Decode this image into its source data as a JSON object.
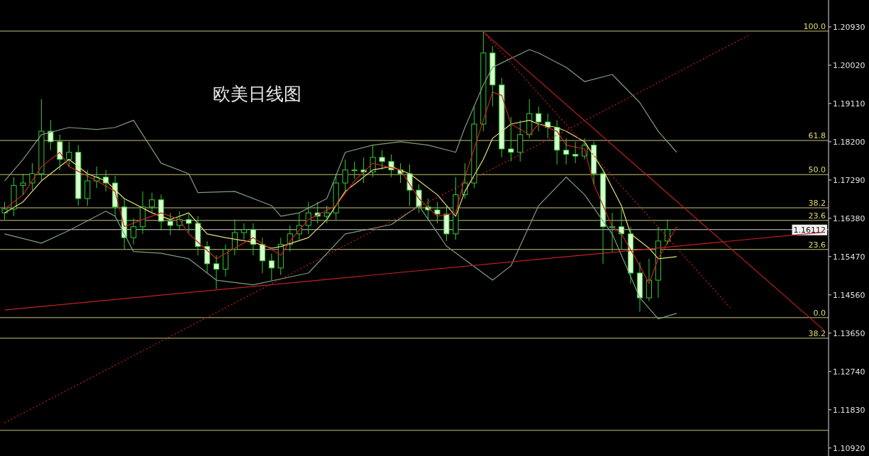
{
  "chart_data": {
    "type": "candlestick",
    "title": "欧美日线图",
    "color": "#33cc33",
    "categories": [
      null,
      null,
      null,
      null,
      null,
      null,
      null,
      null,
      null,
      null,
      null,
      null,
      null,
      null,
      null,
      null,
      null,
      null,
      null,
      null,
      null,
      null,
      null,
      null,
      null,
      null,
      null,
      null,
      null,
      null,
      null,
      null,
      null,
      null,
      null,
      null,
      null,
      null,
      null,
      null,
      null,
      null,
      null,
      null,
      null,
      null,
      null,
      null,
      null,
      null,
      null,
      null,
      null,
      null,
      null,
      null,
      null,
      null,
      null,
      null,
      null,
      null,
      null,
      null,
      null,
      null,
      null,
      null,
      null,
      null,
      null,
      null,
      null,
      null,
      null,
      null,
      null,
      null,
      null,
      null,
      null,
      null,
      null,
      null,
      null,
      null,
      null,
      null,
      null,
      null
    ],
    "ohlc": [
      [
        1.1651,
        1.1677,
        1.1635,
        1.166
      ],
      [
        1.166,
        1.1736,
        1.1643,
        1.1716
      ],
      [
        1.1716,
        1.1744,
        1.1694,
        1.1722
      ],
      [
        1.1722,
        1.1769,
        1.1705,
        1.1744
      ],
      [
        1.1744,
        1.1921,
        1.1727,
        1.1845
      ],
      [
        1.1845,
        1.1871,
        1.18,
        1.182
      ],
      [
        1.182,
        1.1837,
        1.1753,
        1.1778
      ],
      [
        1.1778,
        1.182,
        1.1761,
        1.1795
      ],
      [
        1.1795,
        1.1812,
        1.1668,
        1.1685
      ],
      [
        1.1685,
        1.1753,
        1.1668,
        1.1727
      ],
      [
        1.1727,
        1.1761,
        1.171,
        1.1736
      ],
      [
        1.1736,
        1.1753,
        1.1702,
        1.1722
      ],
      [
        1.1722,
        1.1739,
        1.1643,
        1.1665
      ],
      [
        1.1665,
        1.1685,
        1.1564,
        1.1592
      ],
      [
        1.1592,
        1.1638,
        1.1576,
        1.1618
      ],
      [
        1.1618,
        1.1702,
        1.1601,
        1.1665
      ],
      [
        1.1665,
        1.1699,
        1.1651,
        1.1682
      ],
      [
        1.1682,
        1.1694,
        1.1609,
        1.1631
      ],
      [
        1.1631,
        1.1651,
        1.1598,
        1.1621
      ],
      [
        1.1621,
        1.1655,
        1.1609,
        1.1635
      ],
      [
        1.1635,
        1.1651,
        1.1604,
        1.1626
      ],
      [
        1.1626,
        1.1643,
        1.155,
        1.1571
      ],
      [
        1.1571,
        1.1584,
        1.1508,
        1.153
      ],
      [
        1.153,
        1.155,
        1.147,
        1.1517
      ],
      [
        1.1517,
        1.1576,
        1.15,
        1.1564
      ],
      [
        1.1564,
        1.1635,
        1.155,
        1.1604
      ],
      [
        1.1604,
        1.1626,
        1.1587,
        1.1611
      ],
      [
        1.1611,
        1.1626,
        1.155,
        1.1576
      ],
      [
        1.1576,
        1.1592,
        1.1508,
        1.1537
      ],
      [
        1.1537,
        1.1554,
        1.1491,
        1.152
      ],
      [
        1.152,
        1.1592,
        1.1503,
        1.1576
      ],
      [
        1.1576,
        1.1621,
        1.1559,
        1.1601
      ],
      [
        1.1601,
        1.1651,
        1.1587,
        1.1621
      ],
      [
        1.1621,
        1.1677,
        1.1601,
        1.1651
      ],
      [
        1.1651,
        1.1677,
        1.1626,
        1.1643
      ],
      [
        1.1643,
        1.1668,
        1.1626,
        1.1651
      ],
      [
        1.1651,
        1.1744,
        1.1635,
        1.1722
      ],
      [
        1.1722,
        1.1778,
        1.1702,
        1.1753
      ],
      [
        1.1753,
        1.1773,
        1.1732,
        1.1753
      ],
      [
        1.1753,
        1.1783,
        1.1722,
        1.1748
      ],
      [
        1.1748,
        1.1812,
        1.1736,
        1.1783
      ],
      [
        1.1783,
        1.18,
        1.1753,
        1.1773
      ],
      [
        1.1773,
        1.179,
        1.1736,
        1.1753
      ],
      [
        1.1753,
        1.1769,
        1.1722,
        1.1744
      ],
      [
        1.1744,
        1.1766,
        1.1668,
        1.1705
      ],
      [
        1.1705,
        1.1719,
        1.1651,
        1.1665
      ],
      [
        1.1665,
        1.1685,
        1.1635,
        1.1658
      ],
      [
        1.1658,
        1.1677,
        1.1626,
        1.1648
      ],
      [
        1.1648,
        1.1668,
        1.1584,
        1.1601
      ],
      [
        1.1601,
        1.1736,
        1.1587,
        1.1694
      ],
      [
        1.1694,
        1.1769,
        1.1685,
        1.1722
      ],
      [
        1.1722,
        1.1904,
        1.171,
        1.1862
      ],
      [
        1.1862,
        1.2081,
        1.1845,
        1.2031
      ],
      [
        1.2031,
        1.2047,
        1.1904,
        1.1955
      ],
      [
        1.1955,
        1.1972,
        1.1783,
        1.1803
      ],
      [
        1.1803,
        1.1879,
        1.1773,
        1.1795
      ],
      [
        1.1795,
        1.1871,
        1.1773,
        1.1837
      ],
      [
        1.1837,
        1.1921,
        1.1828,
        1.1887
      ],
      [
        1.1887,
        1.1904,
        1.1845,
        1.1867
      ],
      [
        1.1867,
        1.1887,
        1.1828,
        1.1854
      ],
      [
        1.1854,
        1.1871,
        1.1766,
        1.18
      ],
      [
        1.18,
        1.1828,
        1.1766,
        1.179
      ],
      [
        1.179,
        1.182,
        1.1769,
        1.1786
      ],
      [
        1.1786,
        1.1828,
        1.1778,
        1.1812
      ],
      [
        1.1812,
        1.182,
        1.1719,
        1.1744
      ],
      [
        1.1744,
        1.1753,
        1.153,
        1.1618
      ],
      [
        1.1618,
        1.1651,
        1.1559,
        1.1618
      ],
      [
        1.1618,
        1.166,
        1.1564,
        1.1601
      ],
      [
        1.1601,
        1.1618,
        1.1483,
        1.1508
      ],
      [
        1.1508,
        1.1534,
        1.1416,
        1.1449
      ],
      [
        1.1449,
        1.1542,
        1.1441,
        1.1491
      ],
      [
        1.1491,
        1.1618,
        1.1449,
        1.1584
      ],
      [
        1.1584,
        1.1635,
        1.1576,
        1.1611
      ],
      null,
      null,
      null,
      null,
      null,
      null,
      null,
      null,
      null,
      null,
      null,
      null,
      null,
      null,
      null,
      null,
      null
    ],
    "series": [
      {
        "type": "line",
        "color": "#7d9c86",
        "values": [
          1.1727,
          null,
          1.1778,
          null,
          1.1837,
          null,
          null,
          1.1854,
          null,
          null,
          1.1849,
          null,
          1.1854,
          null,
          1.1871,
          1.1837,
          null,
          1.1769,
          null,
          null,
          1.1744,
          1.1699,
          null,
          null,
          null,
          1.1702,
          null,
          null,
          null,
          1.1668,
          1.1643,
          null,
          1.1651,
          null,
          null,
          1.1685,
          null,
          1.1795,
          null,
          null,
          1.1812,
          null,
          null,
          1.182,
          null,
          null,
          1.1812,
          null,
          null,
          1.1795,
          1.1854,
          null,
          1.1955,
          1.1997,
          null,
          null,
          null,
          1.2039,
          1.2031,
          null,
          null,
          1.1997,
          null,
          1.1963,
          null,
          null,
          1.198,
          null,
          null,
          1.1913,
          null,
          1.1845,
          null,
          1.1795,
          null,
          null,
          null,
          null,
          null,
          null,
          null,
          null,
          null,
          null,
          null,
          null,
          null,
          null,
          null,
          null
        ]
      },
      {
        "type": "line",
        "color": "#7d9c86",
        "values": [
          1.1601,
          null,
          null,
          null,
          1.1579,
          null,
          null,
          1.1609,
          null,
          null,
          null,
          1.1655,
          1.1643,
          null,
          1.1559,
          null,
          null,
          1.1555,
          null,
          null,
          1.1542,
          null,
          null,
          1.1491,
          null,
          null,
          null,
          1.148,
          null,
          null,
          null,
          null,
          null,
          1.1508,
          null,
          null,
          null,
          1.1601,
          null,
          null,
          null,
          null,
          1.1623,
          null,
          null,
          1.1668,
          null,
          null,
          1.1572,
          null,
          null,
          null,
          null,
          1.1491,
          null,
          1.1525,
          null,
          null,
          1.1668,
          null,
          null,
          1.1736,
          null,
          1.1694,
          null,
          null,
          1.1601,
          null,
          null,
          1.1449,
          null,
          1.1399,
          null,
          1.1412,
          null,
          null,
          null,
          null,
          null,
          null,
          null,
          null,
          null,
          null,
          null,
          null,
          null,
          null,
          null,
          null
        ]
      },
      {
        "type": "line",
        "color": "#e6df7a",
        "values": [
          1.1651,
          null,
          1.1677,
          null,
          1.1727,
          null,
          null,
          1.1778,
          null,
          1.1744,
          null,
          1.1727,
          null,
          1.1685,
          null,
          null,
          1.1651,
          null,
          1.1635,
          null,
          1.1651,
          null,
          1.1601,
          null,
          1.1592,
          null,
          null,
          1.1581,
          null,
          1.1567,
          1.1571,
          null,
          null,
          1.1592,
          null,
          1.1635,
          null,
          1.1702,
          null,
          null,
          1.1753,
          null,
          1.1761,
          null,
          1.1744,
          null,
          null,
          1.1694,
          null,
          1.1643,
          1.1702,
          null,
          1.1778,
          1.1828,
          null,
          1.1862,
          null,
          1.1871,
          1.1862,
          null,
          1.1854,
          1.1845,
          null,
          1.182,
          null,
          1.1753,
          null,
          1.1668,
          1.1601,
          null,
          1.1567,
          1.1542,
          null,
          1.1547,
          null,
          null,
          null,
          null,
          null,
          null,
          null,
          null,
          null,
          null,
          null,
          null,
          null,
          null,
          null,
          null
        ]
      },
      {
        "type": "line",
        "color": "#c42020",
        "values": [
          1.166,
          null,
          1.1694,
          null,
          1.1761,
          null,
          1.1795,
          1.1761,
          null,
          null,
          1.1727,
          null,
          1.1702,
          1.1618,
          null,
          1.1635,
          null,
          1.1651,
          null,
          1.1635,
          1.1601,
          null,
          null,
          1.1542,
          null,
          1.1567,
          null,
          1.1592,
          null,
          null,
          1.155,
          1.1584,
          null,
          1.1635,
          null,
          null,
          1.1668,
          null,
          1.1727,
          null,
          1.1769,
          null,
          null,
          1.1753,
          null,
          1.1685,
          null,
          1.1643,
          null,
          1.1651,
          1.1736,
          null,
          1.1871,
          1.1938,
          1.193,
          1.1862,
          null,
          1.1837,
          1.1862,
          null,
          1.1845,
          1.1812,
          null,
          1.1803,
          1.1719,
          null,
          1.1618,
          1.1601,
          null,
          1.1525,
          1.1483,
          1.1542,
          null,
          1.1618,
          null,
          null,
          null,
          null,
          null,
          null,
          null,
          null,
          null,
          null,
          null,
          null,
          null,
          null,
          null,
          null
        ]
      },
      {
        "type": "line",
        "color": "#c42020",
        "values": [
          1.142,
          null,
          null,
          null,
          null,
          null,
          null,
          null,
          null,
          null,
          null,
          null,
          null,
          null,
          null,
          null,
          null,
          null,
          null,
          null,
          null,
          null,
          null,
          null,
          null,
          null,
          null,
          null,
          null,
          null,
          null,
          null,
          null,
          null,
          null,
          null,
          null,
          null,
          null,
          null,
          null,
          null,
          null,
          null,
          null,
          null,
          null,
          null,
          null,
          null,
          null,
          null,
          null,
          null,
          null,
          null,
          null,
          null,
          null,
          null,
          null,
          null,
          null,
          null,
          null,
          null,
          null,
          null,
          null,
          null,
          null,
          null,
          null,
          null,
          null,
          null,
          null,
          null,
          null,
          null,
          null,
          null,
          null,
          null,
          null,
          null,
          null,
          null,
          null,
          1.1605
        ]
      },
      {
        "type": "line",
        "color": "#c42020",
        "line_style": "dotted",
        "values": [
          1.1152,
          null,
          null,
          null,
          null,
          null,
          null,
          null,
          null,
          null,
          null,
          null,
          null,
          null,
          null,
          null,
          null,
          null,
          null,
          null,
          null,
          null,
          null,
          null,
          null,
          null,
          null,
          null,
          null,
          null,
          null,
          null,
          null,
          null,
          null,
          null,
          null,
          null,
          null,
          null,
          null,
          null,
          null,
          null,
          null,
          null,
          null,
          null,
          null,
          null,
          null,
          null,
          null,
          null,
          null,
          null,
          null,
          null,
          null,
          null,
          null,
          null,
          null,
          null,
          null,
          null,
          null,
          null,
          null,
          null,
          null,
          null,
          null,
          null,
          null,
          null,
          null,
          null,
          null,
          null,
          null,
          1.2075,
          null,
          null,
          null,
          null,
          null,
          null,
          null,
          null
        ]
      },
      {
        "type": "line",
        "color": "#c42020",
        "values": [
          null,
          null,
          null,
          null,
          null,
          null,
          null,
          null,
          null,
          null,
          null,
          null,
          null,
          null,
          null,
          null,
          null,
          null,
          null,
          null,
          null,
          null,
          null,
          null,
          null,
          null,
          null,
          null,
          null,
          null,
          null,
          null,
          null,
          null,
          null,
          null,
          null,
          null,
          null,
          null,
          null,
          null,
          null,
          null,
          null,
          null,
          null,
          null,
          null,
          null,
          null,
          null,
          1.2081,
          null,
          null,
          null,
          null,
          null,
          null,
          null,
          null,
          null,
          null,
          null,
          null,
          null,
          null,
          null,
          null,
          null,
          null,
          null,
          null,
          null,
          null,
          null,
          null,
          null,
          null,
          null,
          null,
          null,
          null,
          null,
          null,
          null,
          null,
          null,
          null,
          1.1372
        ]
      },
      {
        "type": "line",
        "color": "#c42020",
        "line_style": "dotted",
        "values": [
          null,
          null,
          null,
          null,
          null,
          null,
          null,
          null,
          null,
          null,
          null,
          null,
          null,
          null,
          null,
          null,
          null,
          null,
          null,
          null,
          null,
          null,
          null,
          null,
          null,
          null,
          null,
          null,
          null,
          null,
          null,
          null,
          null,
          null,
          null,
          null,
          null,
          null,
          null,
          null,
          null,
          null,
          null,
          null,
          null,
          null,
          null,
          null,
          null,
          null,
          null,
          null,
          1.2081,
          null,
          null,
          null,
          null,
          null,
          null,
          null,
          null,
          null,
          null,
          null,
          null,
          null,
          null,
          null,
          null,
          null,
          null,
          null,
          null,
          null,
          null,
          null,
          null,
          null,
          null,
          1.1421,
          null,
          null,
          null,
          null,
          null,
          null,
          null,
          null,
          null,
          null
        ]
      }
    ],
    "ref_lines": [
      {
        "axis": "y",
        "value": 1.2083,
        "color": "#c8c47a"
      },
      {
        "axis": "y",
        "value": 1.1823,
        "color": "#c8c47a"
      },
      {
        "axis": "y",
        "value": 1.1742,
        "color": "#c8c47a"
      },
      {
        "axis": "y",
        "value": 1.1663,
        "color": "#c8c47a"
      },
      {
        "axis": "y",
        "value": 1.1633,
        "color": "#c8c47a"
      },
      {
        "axis": "y",
        "value": 1.16112,
        "label": "1.16112",
        "color": "#d0d0d0"
      },
      {
        "axis": "y",
        "value": 1.1564,
        "color": "#c8c47a"
      },
      {
        "axis": "y",
        "value": 1.1402,
        "color": "#c8c47a"
      },
      {
        "axis": "y",
        "value": 1.1353,
        "color": "#c8c47a"
      },
      {
        "axis": "y",
        "value": 1.1134,
        "color": "#c8c47a"
      }
    ],
    "annotations": [
      {
        "text": "100.0",
        "y": 1.2083
      },
      {
        "text": "61.8",
        "y": 1.1823
      },
      {
        "text": "50.0",
        "y": 1.1742
      },
      {
        "text": "38.2",
        "y": 1.1663
      },
      {
        "text": "23.6",
        "y": 1.1633
      },
      {
        "text": "23.6",
        "y": 1.1564
      },
      {
        "text": "0.0",
        "y": 1.1402
      },
      {
        "text": "38.2",
        "y": 1.1353
      }
    ],
    "ylim": [
      1.1073,
      1.2157
    ],
    "yticks": [
      {
        "value": 1.1092,
        "label": "1.10920"
      },
      {
        "value": 1.1183,
        "label": "1.11830"
      },
      {
        "value": 1.1274,
        "label": "1.12740"
      },
      {
        "value": 1.1365,
        "label": "1.13650"
      },
      {
        "value": 1.1456,
        "label": "1.14560"
      },
      {
        "value": 1.1547,
        "label": "1.15470"
      },
      {
        "value": 1.1638,
        "label": "1.16380"
      },
      {
        "value": 1.1729,
        "label": "1.17290"
      },
      {
        "value": 1.182,
        "label": "1.18200"
      },
      {
        "value": 1.1911,
        "label": "1.19110"
      },
      {
        "value": 1.2002,
        "label": "1.20020"
      },
      {
        "value": 1.2093,
        "label": "1.20930"
      }
    ],
    "tick_labels": "y",
    "grid": false
  }
}
